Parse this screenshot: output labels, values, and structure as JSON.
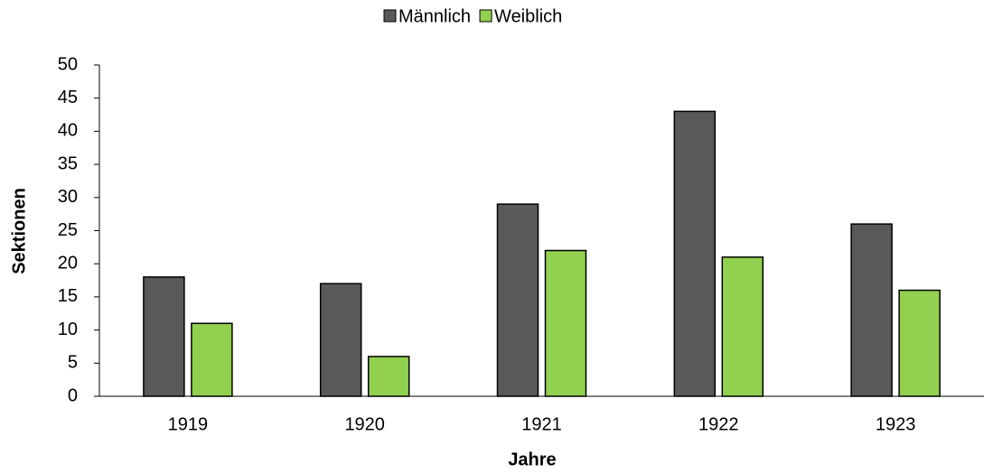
{
  "chart_data": {
    "type": "bar",
    "categories": [
      "1919",
      "1920",
      "1921",
      "1922",
      "1923"
    ],
    "series": [
      {
        "name": "Männlich",
        "color": "#595959",
        "values": [
          18,
          17,
          29,
          43,
          26
        ]
      },
      {
        "name": "Weiblich",
        "color": "#92d050",
        "values": [
          11,
          6,
          22,
          21,
          16
        ]
      }
    ],
    "xlabel": "Jahre",
    "ylabel": "Sektionen",
    "ylim": [
      0,
      50
    ],
    "yticks": [
      0,
      5,
      10,
      15,
      20,
      25,
      30,
      35,
      40,
      45,
      50
    ],
    "legend": "top",
    "grid": false
  }
}
